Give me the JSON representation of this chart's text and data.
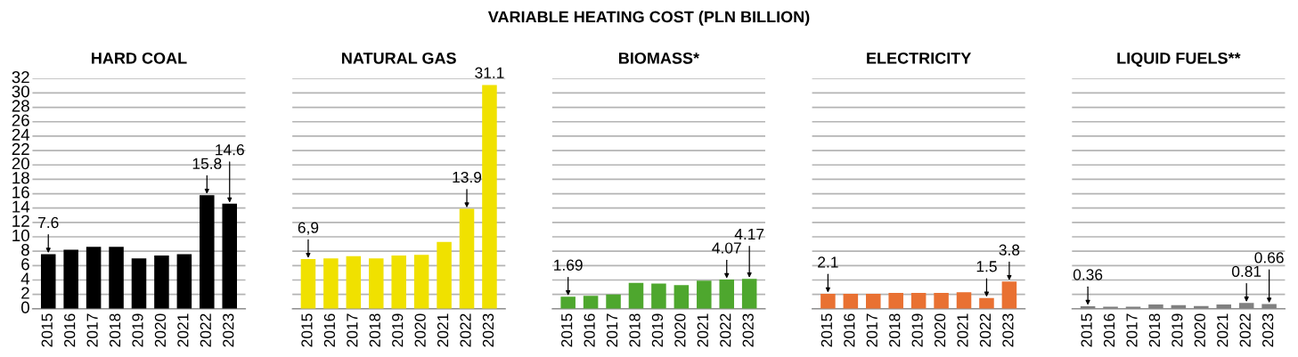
{
  "chart_data": [
    {
      "type": "bar",
      "title": "HARD COAL",
      "annotations": [
        "VARIABLE HEATING COST (PLN BILLION)"
      ],
      "categories": [
        "2015",
        "2016",
        "2017",
        "2018",
        "2019",
        "2020",
        "2021",
        "2022",
        "2023"
      ],
      "values": [
        7.6,
        8.2,
        8.6,
        8.6,
        7.0,
        7.4,
        7.6,
        15.8,
        14.6
      ],
      "value_labels": [
        "7.6",
        null,
        null,
        null,
        null,
        null,
        null,
        "15.8",
        "14.6"
      ],
      "color": "#000000",
      "ylim": [
        0,
        32
      ],
      "yticks": [
        0,
        2,
        4,
        6,
        8,
        10,
        12,
        14,
        16,
        18,
        20,
        22,
        24,
        26,
        28,
        30,
        32
      ],
      "grid": "y"
    },
    {
      "type": "bar",
      "title": "NATURAL GAS",
      "categories": [
        "2015",
        "2016",
        "2017",
        "2018",
        "2019",
        "2020",
        "2021",
        "2022",
        "2023"
      ],
      "values": [
        6.9,
        7.0,
        7.3,
        7.0,
        7.4,
        7.5,
        9.3,
        13.9,
        31.1
      ],
      "value_labels": [
        "6,9",
        null,
        null,
        null,
        null,
        null,
        null,
        "13.9",
        "31.1"
      ],
      "color": "#f0e100",
      "ylim": [
        0,
        32
      ],
      "yticks": [
        0,
        2,
        4,
        6,
        8,
        10,
        12,
        14,
        16,
        18,
        20,
        22,
        24,
        26,
        28,
        30,
        32
      ],
      "grid": "y",
      "tick_labels": "x"
    },
    {
      "type": "bar",
      "title": "BIOMASS*",
      "categories": [
        "2015",
        "2016",
        "2017",
        "2018",
        "2019",
        "2020",
        "2021",
        "2022",
        "2023"
      ],
      "values": [
        1.69,
        1.8,
        2.0,
        3.6,
        3.5,
        3.3,
        3.9,
        4.07,
        4.17
      ],
      "value_labels": [
        "1.69",
        null,
        null,
        null,
        null,
        null,
        null,
        "4.07",
        "4.17"
      ],
      "color": "#4ea72e",
      "ylim": [
        0,
        32
      ],
      "yticks": [
        0,
        2,
        4,
        6,
        8,
        10,
        12,
        14,
        16,
        18,
        20,
        22,
        24,
        26,
        28,
        30,
        32
      ],
      "grid": "y",
      "tick_labels": "x"
    },
    {
      "type": "bar",
      "title": "ELECTRICITY",
      "categories": [
        "2015",
        "2016",
        "2017",
        "2018",
        "2019",
        "2020",
        "2021",
        "2022",
        "2023"
      ],
      "values": [
        2.1,
        2.1,
        2.1,
        2.2,
        2.2,
        2.2,
        2.3,
        1.5,
        3.8
      ],
      "value_labels": [
        "2.1",
        null,
        null,
        null,
        null,
        null,
        null,
        "1.5",
        "3.8"
      ],
      "color": "#e97132",
      "ylim": [
        0,
        32
      ],
      "yticks": [
        0,
        2,
        4,
        6,
        8,
        10,
        12,
        14,
        16,
        18,
        20,
        22,
        24,
        26,
        28,
        30,
        32
      ],
      "grid": "y",
      "tick_labels": "x"
    },
    {
      "type": "bar",
      "title": "LIQUID FUELS**",
      "categories": [
        "2015",
        "2016",
        "2017",
        "2018",
        "2019",
        "2020",
        "2021",
        "2022",
        "2023"
      ],
      "values": [
        0.36,
        0.3,
        0.3,
        0.6,
        0.5,
        0.4,
        0.6,
        0.81,
        0.66
      ],
      "value_labels": [
        "0.36",
        null,
        null,
        null,
        null,
        null,
        null,
        "0.81",
        "0.66"
      ],
      "color": "#808080",
      "ylim": [
        0,
        32
      ],
      "yticks": [
        0,
        2,
        4,
        6,
        8,
        10,
        12,
        14,
        16,
        18,
        20,
        22,
        24,
        26,
        28,
        30,
        32
      ],
      "grid": "y",
      "tick_labels": "x"
    }
  ]
}
